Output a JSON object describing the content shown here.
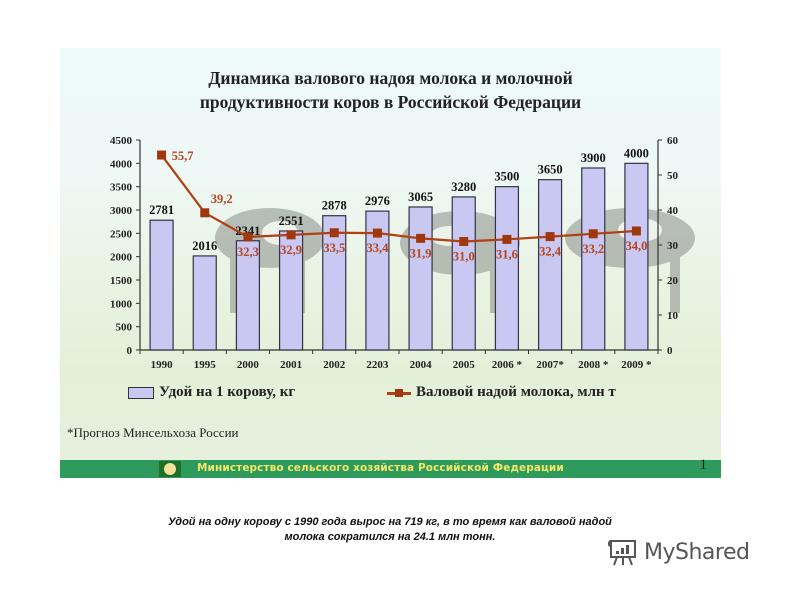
{
  "slide": {
    "title_line1": "Динамика валового надоя молока и молочной",
    "title_line2": "продуктивности коров в Российской Федерации",
    "note": "*Прогноз Минсельхоза России",
    "footer_text": "Министерство сельского хозяйства Российской Федерации",
    "footer_page": "1",
    "footer_logo": "ministry-emblem-icon"
  },
  "legend": {
    "bars_label": "Удой на 1 корову, кг",
    "line_label": "Валовой надой молока, млн т"
  },
  "caption": {
    "line1": "Удой на одну корову с 1990 года вырос на 719 кг, в то время как валовой надой",
    "line2": "молока сократился на 24.1 млн тонн."
  },
  "brand": {
    "name": "MyShared",
    "icon": "presentation-board-icon"
  },
  "colors": {
    "bar_fill": "#c8c8f2",
    "bar_stroke": "#333344",
    "line": "#b04010",
    "marker": "#a0380e",
    "line_labels": "#b5451b",
    "footer_bg": "#2e9a5c",
    "footer_text": "#f4e66a"
  },
  "chart_data": {
    "type": "bar+line",
    "title": "Динамика валового надоя молока и молочной продуктивности коров в Российской Федерации",
    "categories": [
      "1990",
      "1995",
      "2000",
      "2001",
      "2002",
      "2203",
      "2004",
      "2005",
      "2006 *",
      "2007*",
      "2008 *",
      "2009 *"
    ],
    "series": [
      {
        "name": "Удой на 1 корову, кг",
        "type": "bar",
        "axis": "left",
        "values": [
          2781,
          2016,
          2341,
          2551,
          2878,
          2976,
          3065,
          3280,
          3500,
          3650,
          3900,
          4000
        ],
        "labels": [
          "2781",
          "2016",
          "2341",
          "2551",
          "2878",
          "2976",
          "3065",
          "3280",
          "3500",
          "3650",
          "3900",
          "4000"
        ]
      },
      {
        "name": "Валовой надой молока, млн т",
        "type": "line",
        "axis": "right",
        "values": [
          55.7,
          39.2,
          32.3,
          32.9,
          33.5,
          33.4,
          31.9,
          31.0,
          31.6,
          32.4,
          33.2,
          34.0
        ],
        "labels": [
          "55,7",
          "39,2",
          "32,3",
          "32,9",
          "33,5",
          "33,4",
          "31,9",
          "31,0",
          "31,6",
          "32,4",
          "33,2",
          "34,0"
        ]
      }
    ],
    "y_left": {
      "min": 0,
      "max": 4500,
      "ticks": [
        "0",
        "500",
        "1000",
        "1500",
        "2000",
        "2500",
        "3000",
        "3500",
        "4000",
        "4500"
      ]
    },
    "y_right": {
      "min": 0,
      "max": 60,
      "ticks": [
        "0",
        "10",
        "20",
        "30",
        "40",
        "50",
        "60"
      ]
    },
    "xlabel": "",
    "ylabel": "",
    "legend_position": "bottom",
    "grid": false
  }
}
